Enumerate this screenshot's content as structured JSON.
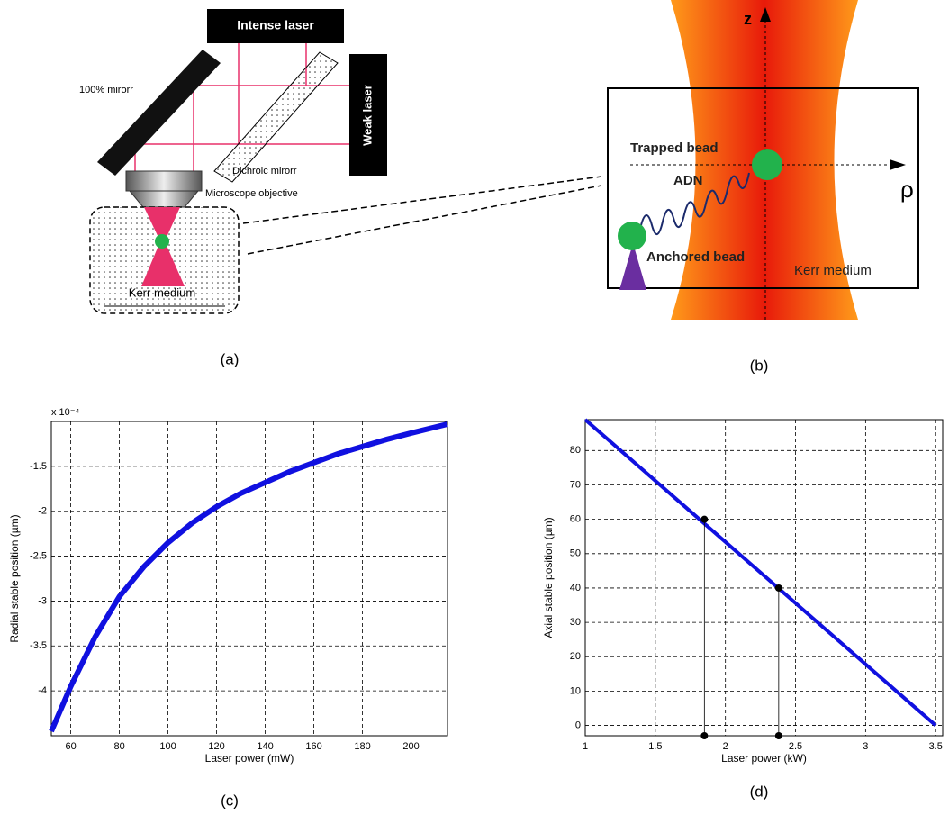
{
  "panels": {
    "a": {
      "intense_laser": "Intense laser",
      "mirror": "100% mirorr",
      "weak_laser": "Weak laser",
      "dichroic": "Dichroic mirorr",
      "objective": "Microscope objective",
      "medium": "Kerr medium",
      "caption": "(a)"
    },
    "b": {
      "z": "z",
      "rho": "ρ",
      "trapped": "Trapped bead",
      "adn": "ADN",
      "anchored": "Anchored bead",
      "medium": "Kerr medium",
      "caption": "(b)"
    },
    "c": {
      "caption": "(c)"
    },
    "d": {
      "caption": "(d)"
    }
  },
  "chart_data": [
    {
      "type": "line",
      "xlabel": "Laser power (mW)",
      "ylabel": "Radial stable position (µm)",
      "multiplier": "x 10⁻⁴",
      "x": [
        52,
        60,
        70,
        80,
        90,
        100,
        110,
        120,
        130,
        140,
        150,
        160,
        170,
        180,
        190,
        200,
        215
      ],
      "series": [
        {
          "color": "#1010e0",
          "values": [
            -4.45,
            -3.95,
            -3.4,
            -2.95,
            -2.62,
            -2.35,
            -2.13,
            -1.95,
            -1.8,
            -1.68,
            -1.56,
            -1.46,
            -1.36,
            -1.28,
            -1.2,
            -1.13,
            -1.03
          ]
        }
      ],
      "xlim": [
        52,
        215
      ],
      "ylim": [
        -4.5,
        -1.0
      ],
      "xticks": [
        60,
        80,
        100,
        120,
        140,
        160,
        180,
        200
      ],
      "yticks": [
        -4,
        -3.5,
        -3,
        -2.5,
        -2,
        -1.5
      ],
      "grid": true
    },
    {
      "type": "line",
      "xlabel": "Laser power (kW)",
      "ylabel": "Axial stable position (µm)",
      "x": [
        1,
        3.5
      ],
      "series": [
        {
          "color": "#1010e0",
          "values": [
            89,
            0
          ]
        }
      ],
      "markers": {
        "x": [
          1.85,
          2.38
        ],
        "y": [
          60,
          40
        ]
      },
      "xlim": [
        1,
        3.55
      ],
      "ylim": [
        -3,
        89
      ],
      "xticks": [
        1,
        1.5,
        2,
        2.5,
        3,
        3.5
      ],
      "yticks": [
        0,
        10,
        20,
        30,
        40,
        50,
        60,
        70,
        80
      ],
      "grid": true
    }
  ]
}
